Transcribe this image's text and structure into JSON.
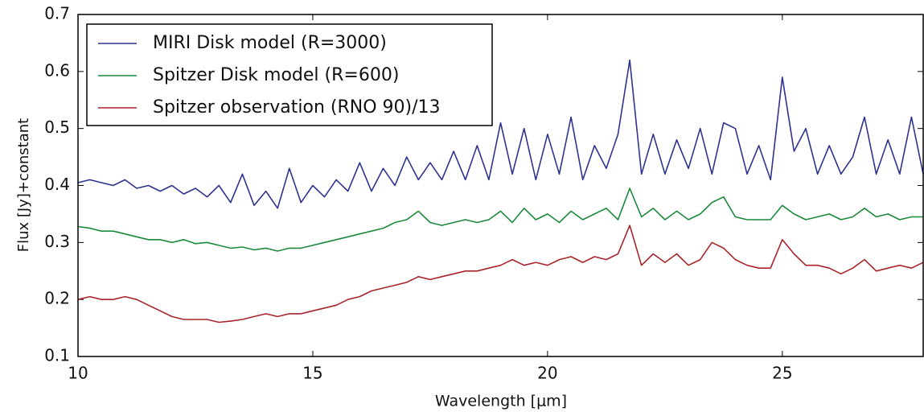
{
  "chart_data": {
    "type": "line",
    "x_label": "Wavelength [μm]",
    "y_label": "Flux [Jy]+constant",
    "x": [
      10,
      10.25,
      10.5,
      10.75,
      11,
      11.25,
      11.5,
      11.75,
      12,
      12.25,
      12.5,
      12.75,
      13,
      13.25,
      13.5,
      13.75,
      14,
      14.25,
      14.5,
      14.75,
      15,
      15.25,
      15.5,
      15.75,
      16,
      16.25,
      16.5,
      16.75,
      17,
      17.25,
      17.5,
      17.75,
      18,
      18.25,
      18.5,
      18.75,
      19,
      19.25,
      19.5,
      19.75,
      20,
      20.25,
      20.5,
      20.75,
      21,
      21.25,
      21.5,
      21.75,
      22,
      22.25,
      22.5,
      22.75,
      23,
      23.25,
      23.5,
      23.75,
      24,
      24.25,
      24.5,
      24.75,
      25,
      25.25,
      25.5,
      25.75,
      26,
      26.25,
      26.5,
      26.75,
      27,
      27.25,
      27.5,
      27.75,
      28
    ],
    "series": [
      {
        "name": "MIRI Disk model (R=3000)",
        "color": "#2e338f",
        "values": [
          0.405,
          0.41,
          0.405,
          0.4,
          0.41,
          0.395,
          0.4,
          0.39,
          0.4,
          0.385,
          0.395,
          0.38,
          0.4,
          0.37,
          0.42,
          0.365,
          0.39,
          0.36,
          0.43,
          0.37,
          0.4,
          0.38,
          0.41,
          0.39,
          0.44,
          0.39,
          0.43,
          0.4,
          0.45,
          0.41,
          0.44,
          0.41,
          0.46,
          0.41,
          0.47,
          0.41,
          0.51,
          0.42,
          0.5,
          0.41,
          0.49,
          0.42,
          0.52,
          0.41,
          0.47,
          0.43,
          0.49,
          0.62,
          0.42,
          0.49,
          0.42,
          0.48,
          0.43,
          0.5,
          0.42,
          0.51,
          0.5,
          0.42,
          0.47,
          0.41,
          0.59,
          0.46,
          0.5,
          0.42,
          0.47,
          0.42,
          0.45,
          0.52,
          0.42,
          0.48,
          0.42,
          0.52,
          0.42
        ]
      },
      {
        "name": "Spitzer Disk model (R=600)",
        "color": "#1b8a3c",
        "values": [
          0.328,
          0.325,
          0.32,
          0.32,
          0.315,
          0.31,
          0.305,
          0.305,
          0.3,
          0.305,
          0.298,
          0.3,
          0.295,
          0.29,
          0.292,
          0.287,
          0.29,
          0.285,
          0.29,
          0.29,
          0.295,
          0.3,
          0.305,
          0.31,
          0.315,
          0.32,
          0.325,
          0.335,
          0.34,
          0.355,
          0.335,
          0.33,
          0.335,
          0.34,
          0.335,
          0.34,
          0.355,
          0.335,
          0.36,
          0.34,
          0.35,
          0.335,
          0.355,
          0.34,
          0.35,
          0.36,
          0.34,
          0.395,
          0.345,
          0.36,
          0.34,
          0.355,
          0.34,
          0.35,
          0.37,
          0.38,
          0.345,
          0.34,
          0.34,
          0.34,
          0.365,
          0.35,
          0.34,
          0.345,
          0.35,
          0.34,
          0.345,
          0.36,
          0.345,
          0.35,
          0.34,
          0.345,
          0.345
        ]
      },
      {
        "name": "Spitzer observation (RNO 90)/13",
        "color": "#a8252b",
        "values": [
          0.2,
          0.205,
          0.2,
          0.2,
          0.205,
          0.2,
          0.19,
          0.18,
          0.17,
          0.165,
          0.165,
          0.165,
          0.16,
          0.162,
          0.165,
          0.17,
          0.175,
          0.17,
          0.175,
          0.175,
          0.18,
          0.185,
          0.19,
          0.2,
          0.205,
          0.215,
          0.22,
          0.225,
          0.23,
          0.24,
          0.235,
          0.24,
          0.245,
          0.25,
          0.25,
          0.255,
          0.26,
          0.27,
          0.26,
          0.265,
          0.26,
          0.27,
          0.275,
          0.265,
          0.275,
          0.27,
          0.28,
          0.33,
          0.26,
          0.28,
          0.265,
          0.28,
          0.26,
          0.27,
          0.3,
          0.29,
          0.27,
          0.26,
          0.255,
          0.255,
          0.305,
          0.28,
          0.26,
          0.26,
          0.255,
          0.245,
          0.255,
          0.27,
          0.25,
          0.255,
          0.26,
          0.255,
          0.265
        ]
      }
    ],
    "xlim": [
      10,
      28
    ],
    "ylim": [
      0.1,
      0.7
    ],
    "xticks": [
      10,
      15,
      20,
      25
    ],
    "yticks": [
      0.1,
      0.2,
      0.3,
      0.4,
      0.5,
      0.6,
      0.7
    ],
    "grid": false,
    "legend": "upper left"
  }
}
